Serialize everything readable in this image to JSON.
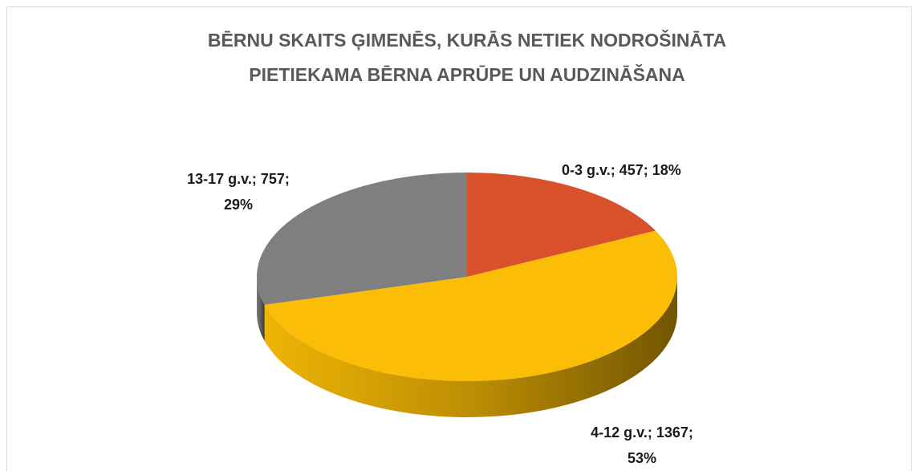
{
  "chart_data": {
    "type": "pie3d",
    "title": [
      "BĒRNU SKAITS ĢIMENĒS, KURĀS NETIEK NODROŠINĀTA",
      "PIETIEKAMA BĒRNA APRŪPE UN AUDZINĀŠANA"
    ],
    "values": [
      457,
      1367,
      757
    ],
    "value_labels": [
      [
        "0-3 g.v.; 457; 18%"
      ],
      [
        "4-12 g.v.; 1367;",
        "53%"
      ],
      [
        "13-17 g.v.; 757;",
        "29%"
      ]
    ],
    "colors": [
      "#d9512a",
      "#fbbd05",
      "#7f7f7f"
    ]
  }
}
